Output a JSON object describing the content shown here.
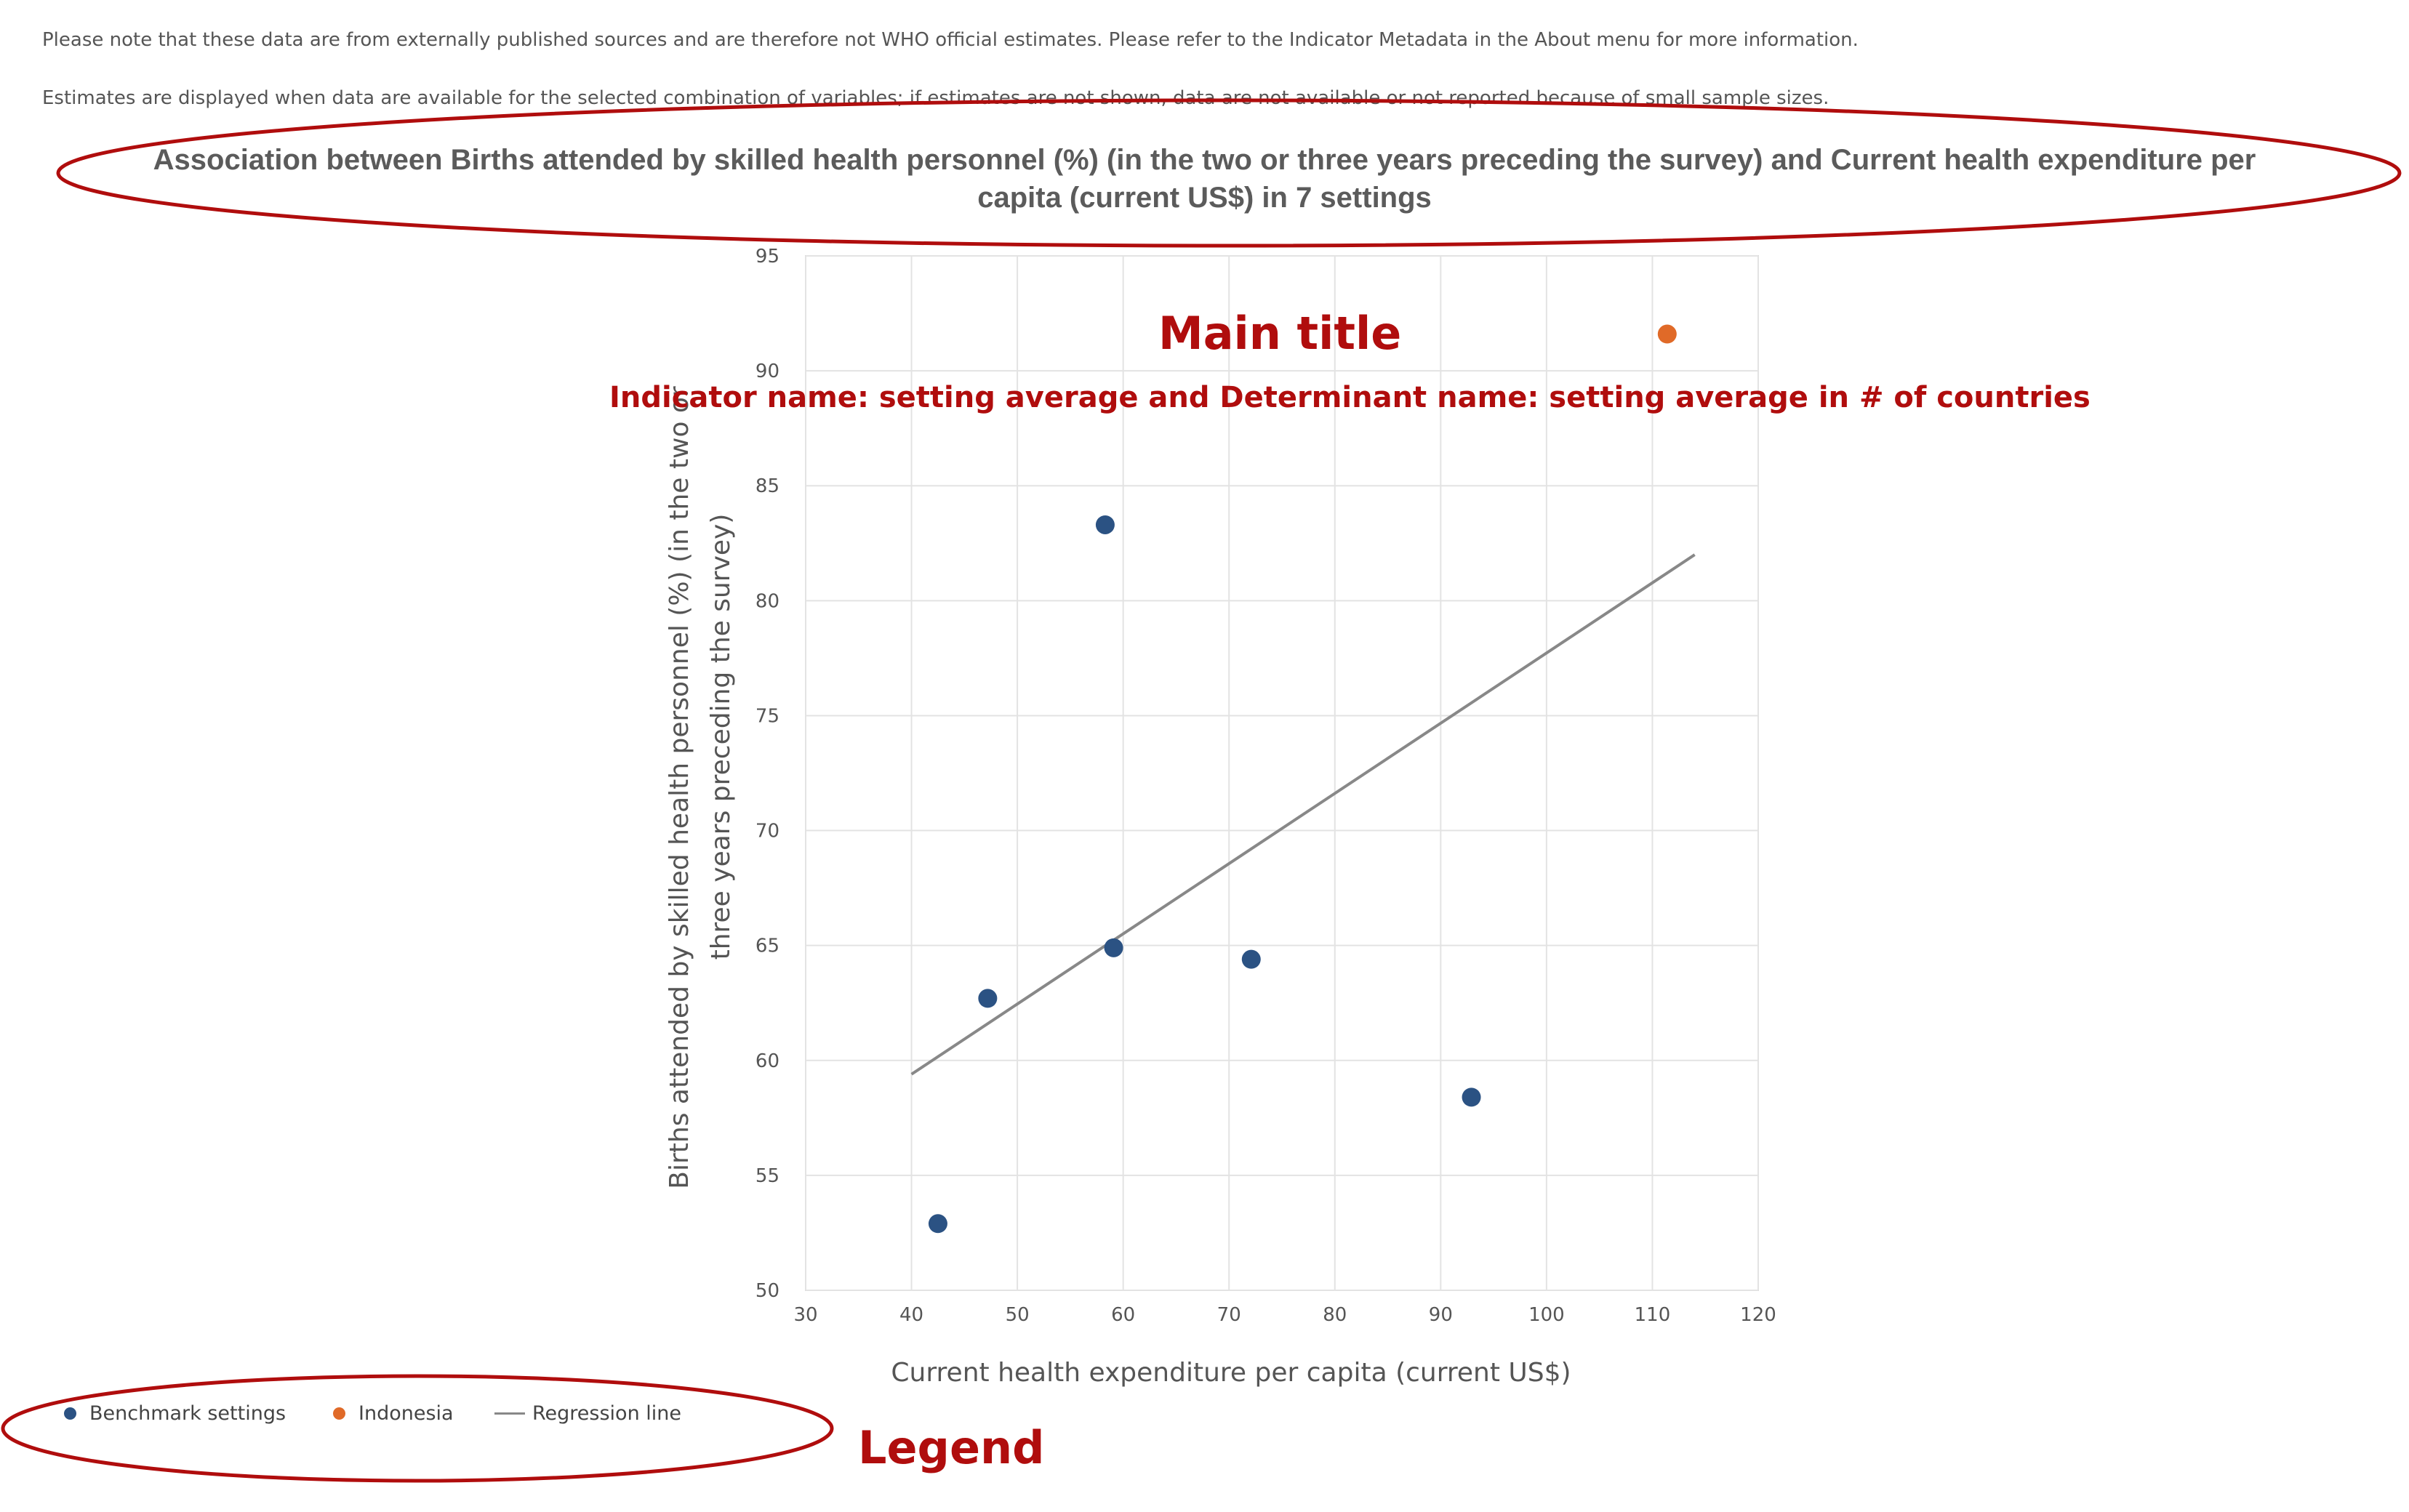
{
  "notes": {
    "line1": "Please note that these data are from externally published sources and are therefore not WHO official estimates. Please refer to the Indicator Metadata in the About menu for more information.",
    "line2": "Estimates are displayed when data are available for the selected combination of variables; if estimates are not shown, data are not available or not reported because of small sample sizes."
  },
  "annotations": {
    "main_title": "Main title",
    "subtitle": "Indicator name: setting average and Determinant name: setting average in # of countries",
    "legend": "Legend",
    "highlight_color": "#b00d0d"
  },
  "chart_data": {
    "type": "scatter",
    "title_line1": "Association between Births attended by skilled health personnel (%) (in the two or three years preceding the survey) and Current health expenditure per",
    "title_line2": "capita (current US$) in 7 settings",
    "xlabel": "Current health expenditure per capita (current US$)",
    "ylabel_line1": "Births attended by skilled health personnel (%) (in the two or",
    "ylabel_line2": "three years preceding the survey)",
    "xlim": [
      30,
      120
    ],
    "ylim": [
      50,
      95
    ],
    "x_ticks": [
      "30",
      "40",
      "50",
      "60",
      "70",
      "80",
      "90",
      "100",
      "110",
      "120"
    ],
    "y_ticks": [
      "50",
      "55",
      "60",
      "65",
      "70",
      "75",
      "80",
      "85",
      "90",
      "95"
    ],
    "grid": true,
    "legend_position": "bottom-left",
    "series": [
      {
        "name": "Benchmark settings",
        "color": "#2b5283",
        "points": [
          {
            "x": 42.5,
            "y": 52.9
          },
          {
            "x": 47.2,
            "y": 62.7
          },
          {
            "x": 58.3,
            "y": 83.3
          },
          {
            "x": 59.1,
            "y": 64.9
          },
          {
            "x": 72.1,
            "y": 64.4
          },
          {
            "x": 92.9,
            "y": 58.4
          }
        ]
      },
      {
        "name": "Indonesia",
        "color": "#e06a28",
        "points": [
          {
            "x": 111.4,
            "y": 91.6
          }
        ]
      }
    ],
    "regression": {
      "name": "Regression line",
      "color": "#888888",
      "points": [
        {
          "x": 40,
          "y": 59.4
        },
        {
          "x": 114,
          "y": 82
        }
      ]
    }
  }
}
